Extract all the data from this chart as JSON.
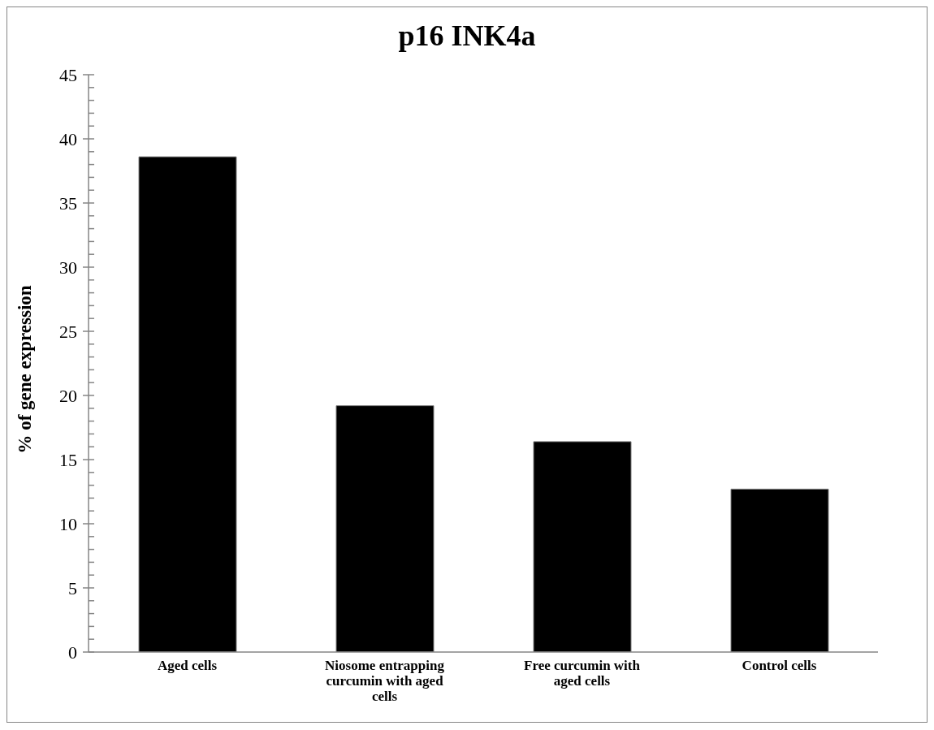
{
  "chart_data": {
    "type": "bar",
    "title": "p16 INK4a",
    "ylabel": "% of gene expression",
    "categories": [
      "Aged cells",
      "Niosome entrapping curcumin with aged cells",
      "Free curcumin with aged cells",
      "Control cells"
    ],
    "values": [
      38.6,
      19.2,
      16.4,
      12.7
    ],
    "color": "#000000",
    "ylim": [
      0,
      45
    ],
    "yticks": [
      0,
      {
        "value": 1,
        "label": null
      },
      {
        "value": 2,
        "label": null
      },
      {
        "value": 3,
        "label": null
      },
      {
        "value": 4,
        "label": null
      },
      5,
      {
        "value": 6,
        "label": null
      },
      {
        "value": 7,
        "label": null
      },
      {
        "value": 8,
        "label": null
      },
      {
        "value": 9,
        "label": null
      },
      10,
      {
        "value": 11,
        "label": null
      },
      {
        "value": 12,
        "label": null
      },
      {
        "value": 13,
        "label": null
      },
      {
        "value": 14,
        "label": null
      },
      15,
      {
        "value": 16,
        "label": null
      },
      {
        "value": 17,
        "label": null
      },
      {
        "value": 18,
        "label": null
      },
      {
        "value": 19,
        "label": null
      },
      20,
      {
        "value": 21,
        "label": null
      },
      {
        "value": 22,
        "label": null
      },
      {
        "value": 23,
        "label": null
      },
      {
        "value": 24,
        "label": null
      },
      25,
      {
        "value": 26,
        "label": null
      },
      {
        "value": 27,
        "label": null
      },
      {
        "value": 28,
        "label": null
      },
      {
        "value": 29,
        "label": null
      },
      30,
      {
        "value": 31,
        "label": null
      },
      {
        "value": 32,
        "label": null
      },
      {
        "value": 33,
        "label": null
      },
      {
        "value": 34,
        "label": null
      },
      35,
      {
        "value": 36,
        "label": null
      },
      {
        "value": 37,
        "label": null
      },
      {
        "value": 38,
        "label": null
      },
      {
        "value": 39,
        "label": null
      },
      40,
      {
        "value": 41,
        "label": null
      },
      {
        "value": 42,
        "label": null
      },
      {
        "value": 43,
        "label": null
      },
      {
        "value": 44,
        "label": null
      },
      45
    ],
    "grid": false,
    "legend": false
  }
}
